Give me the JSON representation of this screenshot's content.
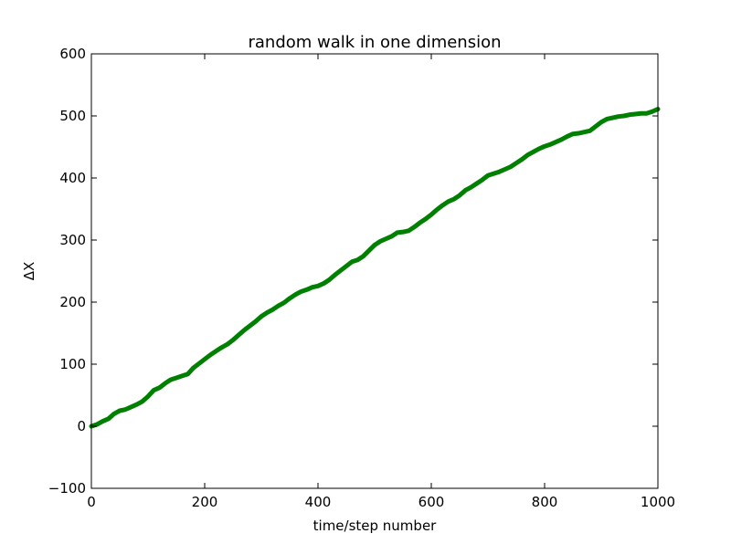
{
  "chart_data": {
    "type": "line",
    "title": "random walk in one dimension",
    "xlabel": "time/step number",
    "ylabel": "ΔX",
    "xlim": [
      0,
      1000
    ],
    "ylim": [
      -100,
      600
    ],
    "xticks": [
      "0",
      "200",
      "400",
      "600",
      "800",
      "1000"
    ],
    "yticks": [
      "−100",
      "0",
      "100",
      "200",
      "300",
      "400",
      "500",
      "600"
    ],
    "xtick_values": [
      0,
      200,
      400,
      600,
      800,
      1000
    ],
    "ytick_values": [
      -100,
      0,
      100,
      200,
      300,
      400,
      500,
      600
    ],
    "grid": false,
    "series": [
      {
        "color": "#008000",
        "x": [
          0,
          10,
          20,
          30,
          40,
          50,
          60,
          70,
          80,
          90,
          100,
          110,
          120,
          130,
          140,
          150,
          160,
          170,
          180,
          190,
          200,
          210,
          220,
          230,
          240,
          250,
          260,
          270,
          280,
          290,
          300,
          310,
          320,
          330,
          340,
          350,
          360,
          370,
          380,
          390,
          400,
          410,
          420,
          430,
          440,
          450,
          460,
          470,
          480,
          490,
          500,
          510,
          520,
          530,
          540,
          550,
          560,
          570,
          580,
          590,
          600,
          610,
          620,
          630,
          640,
          650,
          660,
          670,
          680,
          690,
          700,
          710,
          720,
          730,
          740,
          750,
          760,
          770,
          780,
          790,
          800,
          810,
          820,
          830,
          840,
          850,
          860,
          870,
          880,
          890,
          900,
          910,
          920,
          930,
          940,
          950,
          960,
          970,
          980,
          990,
          1000
        ],
        "values": [
          0,
          3,
          8,
          12,
          20,
          25,
          27,
          31,
          35,
          40,
          48,
          58,
          62,
          69,
          75,
          78,
          81,
          84,
          94,
          101,
          108,
          115,
          121,
          127,
          132,
          139,
          147,
          155,
          162,
          169,
          177,
          183,
          188,
          194,
          199,
          206,
          212,
          217,
          220,
          224,
          226,
          230,
          236,
          244,
          251,
          258,
          265,
          268,
          274,
          283,
          292,
          298,
          302,
          306,
          312,
          313,
          315,
          321,
          328,
          334,
          341,
          349,
          356,
          362,
          366,
          372,
          380,
          385,
          391,
          397,
          404,
          407,
          410,
          414,
          418,
          424,
          430,
          437,
          442,
          447,
          451,
          454,
          458,
          462,
          467,
          471,
          472,
          474,
          476,
          483,
          490,
          495,
          497,
          499,
          500,
          502,
          503,
          504,
          504,
          507,
          511
        ]
      }
    ]
  }
}
